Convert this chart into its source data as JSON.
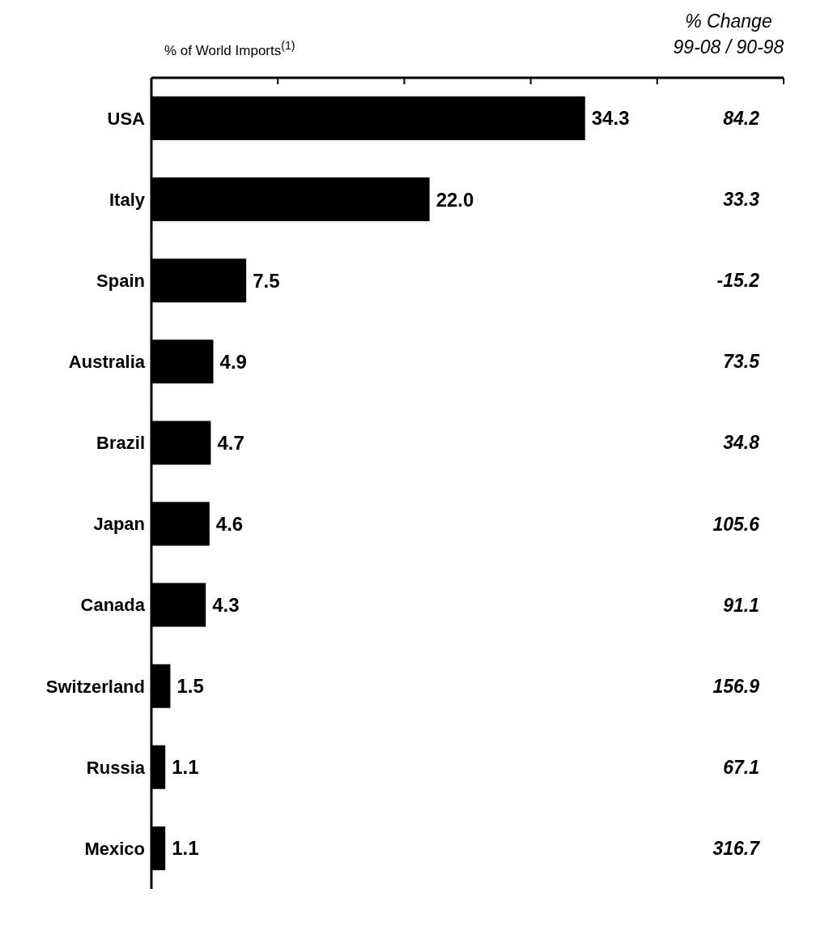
{
  "chart_data": {
    "type": "bar",
    "orientation": "horizontal",
    "xlabel": "% of World Imports$^{(1)}$",
    "categories": [
      "USA",
      "Italy",
      "Spain",
      "Australia",
      "Brazil",
      "Japan",
      "Canada",
      "Switzerland",
      "Russia",
      "Mexico"
    ],
    "values": [
      34.3,
      22.0,
      7.5,
      4.9,
      4.7,
      4.6,
      4.3,
      1.5,
      1.1,
      1.1
    ],
    "value_labels": [
      "34.3",
      "22.0",
      "7.5",
      "4.9",
      "4.7",
      "4.6",
      "4.3",
      "1.5",
      "1.1",
      "1.1"
    ],
    "color": "#000000",
    "xlim": [
      0,
      50
    ],
    "xticks": [
      {
        "value": 0,
        "label": null
      },
      {
        "value": 10,
        "label": null
      },
      {
        "value": 20,
        "label": null
      },
      {
        "value": 30,
        "label": null
      },
      {
        "value": 40,
        "label": null
      },
      {
        "value": 50,
        "label": null
      }
    ],
    "tick_labels": "y",
    "grid": false,
    "legend": false,
    "annotations": [
      "% Change\n99-08 / 90-98",
      "84.2",
      "33.3",
      "-15.2",
      "73.5",
      "34.8",
      "105.6",
      "91.1",
      "156.9",
      "67.1",
      "316.7"
    ]
  }
}
